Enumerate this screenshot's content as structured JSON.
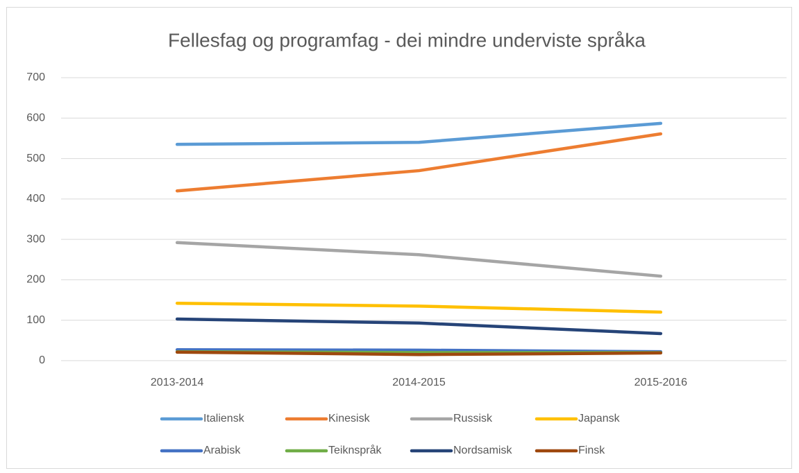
{
  "chart_data": {
    "type": "line",
    "title": "Fellesfag og programfag - dei mindre underviste språka",
    "categories": [
      "2013-2014",
      "2014-2015",
      "2015-2016"
    ],
    "series": [
      {
        "name": "Italiensk",
        "color": "#5b9bd5",
        "values": [
          535,
          540,
          587
        ]
      },
      {
        "name": "Kinesisk",
        "color": "#ed7d31",
        "values": [
          420,
          470,
          561
        ]
      },
      {
        "name": "Russisk",
        "color": "#a5a5a5",
        "values": [
          292,
          262,
          209
        ]
      },
      {
        "name": "Japansk",
        "color": "#ffc000",
        "values": [
          142,
          135,
          120
        ]
      },
      {
        "name": "Arabisk",
        "color": "#4472c4",
        "values": [
          27,
          26,
          22
        ]
      },
      {
        "name": "Teiknspråk",
        "color": "#70ad47",
        "values": [
          22,
          20,
          20
        ]
      },
      {
        "name": "Nordsamisk",
        "color": "#264478",
        "values": [
          103,
          93,
          67
        ]
      },
      {
        "name": "Finsk",
        "color": "#9e480e",
        "values": [
          21,
          15,
          19
        ]
      }
    ],
    "ylim": [
      0,
      700
    ],
    "yticks": [
      0,
      100,
      200,
      300,
      400,
      500,
      600,
      700
    ],
    "grid": true,
    "legend": "bottom"
  }
}
